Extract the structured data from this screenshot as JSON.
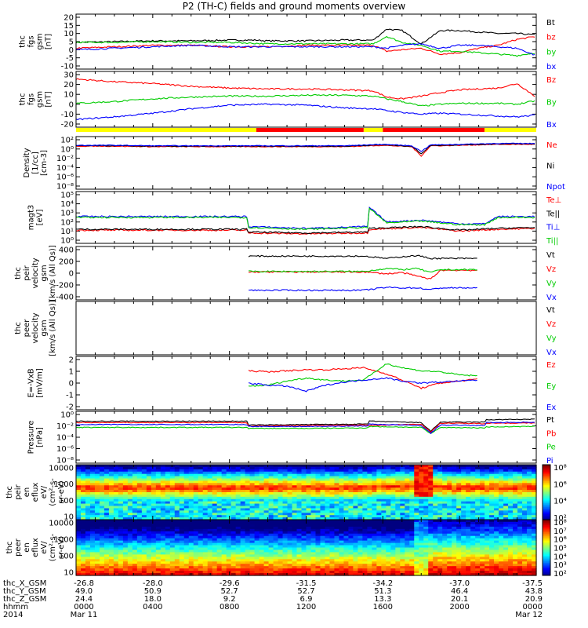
{
  "title": "P2 (TH-C) fields and ground moments overview",
  "chart_data": [
    {
      "type": "line",
      "ylabel_lines": [
        "thc",
        "fgs",
        "gsm",
        "[nT]"
      ],
      "yticks": [
        "20",
        "15",
        "10",
        "5",
        "0",
        "-5",
        "-10"
      ],
      "ylim": [
        -12,
        21
      ],
      "series": [
        {
          "name": "Bt",
          "color": "#000000",
          "x": [
            0,
            2,
            4,
            6,
            8,
            9.4,
            10,
            12,
            14,
            15.5,
            16.2,
            17,
            18,
            19,
            20,
            21,
            22,
            23,
            24
          ],
          "values": [
            4,
            4.5,
            5,
            5,
            5.5,
            5.5,
            5,
            5,
            5.5,
            5.5,
            13,
            12,
            3,
            12,
            12,
            11,
            10,
            10,
            9
          ]
        },
        {
          "name": "bz",
          "color": "#ff0000",
          "x": [
            0,
            2,
            4,
            6,
            8,
            10,
            12,
            14,
            15.5,
            16.2,
            17,
            18,
            19,
            20,
            21,
            22,
            23,
            24
          ],
          "values": [
            0,
            1,
            2,
            2,
            1,
            1,
            2,
            2,
            2,
            -2,
            -1,
            0,
            -4,
            -3,
            0,
            2,
            6,
            8
          ]
        },
        {
          "name": "by",
          "color": "#00cc00",
          "x": [
            0,
            2,
            4,
            6,
            8,
            10,
            12,
            14,
            15.5,
            16.2,
            17,
            18,
            19,
            20,
            21,
            22,
            23,
            24
          ],
          "values": [
            4,
            4,
            4.5,
            4,
            4,
            3,
            3,
            3,
            3,
            8,
            4,
            2,
            -2,
            -2,
            -3,
            -4,
            -5,
            -3
          ]
        },
        {
          "name": "bx",
          "color": "#0000ff",
          "x": [
            0,
            2,
            4,
            6,
            8,
            10,
            12,
            14,
            15.5,
            16.2,
            17,
            18,
            19,
            20,
            21,
            22,
            23,
            24
          ],
          "values": [
            -1,
            0,
            1,
            2,
            1,
            1,
            1,
            1,
            1,
            0,
            2,
            3,
            0,
            2,
            2,
            1,
            0,
            -5
          ]
        }
      ]
    },
    {
      "type": "line",
      "ylabel_lines": [
        "thc",
        "fgs",
        "gsm",
        "[nT]"
      ],
      "yticks": [
        "30",
        "20",
        "10",
        "0",
        "-10",
        "-20"
      ],
      "ylim": [
        -25,
        30
      ],
      "series": [
        {
          "name": "Bz",
          "color": "#ff0000",
          "x": [
            0,
            2,
            4,
            6,
            8,
            10,
            12,
            14,
            15.5,
            16.2,
            17,
            18,
            19,
            20,
            21,
            22,
            23,
            24
          ],
          "values": [
            25,
            22,
            20,
            17,
            15,
            14,
            14,
            13,
            12,
            5,
            3,
            6,
            10,
            13,
            14,
            15,
            20,
            5
          ]
        },
        {
          "name": "By",
          "color": "#00cc00",
          "x": [
            0,
            2,
            4,
            6,
            8,
            10,
            12,
            14,
            15.5,
            16.2,
            17,
            18,
            19,
            20,
            21,
            22,
            23,
            24
          ],
          "values": [
            -2,
            0,
            3,
            5,
            6,
            6,
            7,
            7,
            6,
            3,
            0,
            -5,
            -3,
            -2,
            -2,
            -2,
            -3,
            1
          ]
        },
        {
          "name": "Bx",
          "color": "#0000ff",
          "x": [
            0,
            2,
            4,
            6,
            8,
            10,
            12,
            14,
            15.5,
            16.2,
            17,
            18,
            19,
            20,
            21,
            22,
            23,
            24
          ],
          "values": [
            -20,
            -17,
            -13,
            -8,
            -4,
            -3,
            -4,
            -7,
            -8,
            -10,
            -12,
            -14,
            -13,
            -14,
            -15,
            -16,
            -17,
            -15
          ]
        }
      ]
    },
    {
      "type": "line",
      "log_y": true,
      "ylabel_lines": [
        "Density",
        "[1/cc]",
        "[cm-3]"
      ],
      "yticks": [
        "10²",
        "10⁰",
        "10⁻²",
        "10⁻⁴",
        "10⁻⁶",
        "10⁻⁸"
      ],
      "ylim_exp": [
        -8,
        2
      ],
      "series": [
        {
          "name": "Ne",
          "color": "#ff0000",
          "x": [
            0,
            2,
            4,
            6,
            8,
            10,
            12,
            14,
            16,
            17.5,
            18,
            18.5,
            19,
            20,
            22,
            24
          ],
          "values_exp": [
            0.6,
            0.6,
            0.5,
            0.5,
            0.5,
            0.5,
            0.5,
            0.5,
            0.8,
            0.5,
            -1.5,
            0.7,
            0.7,
            0.8,
            1,
            1
          ]
        },
        {
          "name": "Ni",
          "color": "#000000",
          "x": [
            0,
            2,
            4,
            6,
            8,
            10,
            12,
            14,
            16,
            17.5,
            18,
            18.5,
            19,
            20,
            22,
            24
          ],
          "values_exp": [
            0.7,
            0.7,
            0.6,
            0.6,
            0.6,
            0.6,
            0.6,
            0.6,
            0.9,
            0.6,
            -1,
            0.8,
            0.8,
            0.9,
            1.1,
            1.1
          ]
        },
        {
          "name": "Npot",
          "color": "#0000ff",
          "x": [
            0,
            2,
            4,
            6,
            8,
            10,
            12,
            14,
            16,
            17.5,
            18,
            18.5,
            19,
            20,
            22,
            24
          ],
          "values_exp": [
            0.8,
            0.8,
            0.7,
            0.7,
            0.7,
            0.7,
            0.7,
            0.7,
            1,
            0.7,
            -0.5,
            0.9,
            0.9,
            1,
            1.2,
            1.2
          ]
        }
      ]
    },
    {
      "type": "line",
      "log_y": true,
      "ylabel_lines": [
        "magt3",
        "[eV]"
      ],
      "yticks": [
        "10⁵",
        "10⁴",
        "10³",
        "10²",
        "10¹",
        "10⁰"
      ],
      "ylim_exp": [
        0,
        5
      ],
      "series": [
        {
          "name": "Te⊥",
          "color": "#ff0000",
          "x": [
            0,
            8.9,
            9,
            12,
            15.2,
            15.3,
            18,
            20,
            22,
            24
          ],
          "values_exp": [
            1.1,
            1.1,
            0.8,
            0.7,
            0.8,
            1.2,
            1.4,
            1.0,
            1.2,
            1.3
          ]
        },
        {
          "name": "Te||",
          "color": "#000000",
          "x": [
            0,
            8.9,
            9,
            12,
            15.2,
            15.3,
            18,
            20,
            22,
            24
          ],
          "values_exp": [
            1.2,
            1.2,
            0.9,
            0.8,
            0.9,
            1.3,
            1.5,
            1.1,
            1.3,
            1.4
          ]
        },
        {
          "name": "Ti⊥",
          "color": "#0000ff",
          "x": [
            0,
            8.9,
            9,
            12,
            15.2,
            15.3,
            16.2,
            18,
            20,
            21.3,
            22,
            24
          ],
          "values_exp": [
            2.6,
            2.6,
            1.5,
            1.3,
            1.5,
            3.6,
            2,
            2.2,
            1.8,
            1.8,
            2.6,
            2.6
          ]
        },
        {
          "name": "Ti||",
          "color": "#00cc00",
          "x": [
            0,
            8.9,
            9,
            12,
            15.2,
            15.3,
            16.2,
            18,
            20,
            21.3,
            22,
            24
          ],
          "values_exp": [
            2.5,
            2.5,
            1.4,
            1.2,
            1.4,
            3.5,
            1.9,
            2.1,
            1.7,
            1.7,
            2.5,
            2.5
          ]
        }
      ]
    },
    {
      "type": "line",
      "ylabel_lines": [
        "thc",
        "peir",
        "velocity",
        "gsm",
        "[km/s (All Qs)]"
      ],
      "yticks": [
        "400",
        "200",
        "0",
        "-200",
        "-400"
      ],
      "ylim": [
        -400,
        400
      ],
      "series": [
        {
          "name": "Vt",
          "color": "#000000",
          "x": [
            9,
            12,
            15,
            16.2,
            17,
            17.8,
            18.5,
            19,
            20,
            21
          ],
          "values": [
            290,
            290,
            290,
            250,
            280,
            300,
            250,
            250,
            250,
            250
          ]
        },
        {
          "name": "Vz",
          "color": "#ff0000",
          "x": [
            9,
            12,
            15,
            16.2,
            17,
            17.8,
            18.5,
            19,
            20,
            21
          ],
          "values": [
            20,
            20,
            20,
            -10,
            10,
            -50,
            -100,
            50,
            50,
            50
          ]
        },
        {
          "name": "Vy",
          "color": "#00cc00",
          "x": [
            9,
            12,
            15,
            16.2,
            17,
            17.8,
            18.5,
            19,
            20,
            21
          ],
          "values": [
            30,
            30,
            30,
            80,
            60,
            80,
            10,
            60,
            60,
            60
          ]
        },
        {
          "name": "Vx",
          "color": "#0000ff",
          "x": [
            9,
            12,
            15,
            16.2,
            17,
            17.8,
            18.5,
            19,
            20,
            21
          ],
          "values": [
            -290,
            -290,
            -290,
            -240,
            -250,
            -250,
            -280,
            -250,
            -250,
            -250
          ]
        }
      ]
    },
    {
      "type": "line",
      "ylabel_lines": [
        "thc",
        "peer",
        "velocity",
        "gsm",
        "[km/s (All Qs)]"
      ],
      "yticks": [],
      "series": [
        {
          "name": "Vt",
          "color": "#000000",
          "x": [],
          "values": []
        },
        {
          "name": "Vz",
          "color": "#ff0000",
          "x": [],
          "values": []
        },
        {
          "name": "Vy",
          "color": "#00cc00",
          "x": [],
          "values": []
        },
        {
          "name": "Vx",
          "color": "#0000ff",
          "x": [],
          "values": []
        }
      ]
    },
    {
      "type": "line",
      "ylabel_lines": [
        "E=-VxB",
        "[mV/m]"
      ],
      "yticks": [
        "2",
        "1",
        "0",
        "-1",
        "-2"
      ],
      "ylim": [
        -2.3,
        2.3
      ],
      "series": [
        {
          "name": "Ez",
          "color": "#ff0000",
          "x": [
            9,
            10,
            11,
            12,
            13,
            14,
            15,
            16.2,
            17,
            18,
            19,
            20,
            21
          ],
          "values": [
            1.2,
            1.1,
            1.2,
            1.3,
            1.3,
            1.4,
            1.5,
            0.9,
            0.3,
            -0.5,
            0,
            0.2,
            0.4
          ]
        },
        {
          "name": "Ey",
          "color": "#00cc00",
          "x": [
            9,
            10,
            11,
            12,
            13,
            14,
            15,
            16.2,
            17,
            18,
            19,
            20,
            21
          ],
          "values": [
            -0.3,
            -0.2,
            0.2,
            0.5,
            0.3,
            0.2,
            0.3,
            1.9,
            1.5,
            1.2,
            1.1,
            0.8,
            0.7
          ]
        },
        {
          "name": "Ex",
          "color": "#0000ff",
          "x": [
            9,
            10,
            11,
            12,
            13,
            14,
            15,
            16.2,
            17,
            18,
            19,
            20,
            21
          ],
          "values": [
            0,
            -0.2,
            -0.3,
            -0.8,
            -0.2,
            0.1,
            0.3,
            0.5,
            0.2,
            0,
            0.1,
            0.2,
            0.3
          ]
        }
      ]
    },
    {
      "type": "line",
      "log_y": true,
      "ylabel_lines": [
        "Pressure",
        "[nPa]"
      ],
      "yticks": [
        "10⁰",
        "10⁻²",
        "10⁻⁴",
        "10⁻⁶",
        "10⁻⁸"
      ],
      "ylim_exp": [
        -9,
        0.5
      ],
      "series": [
        {
          "name": "Pt",
          "color": "#000000",
          "x": [
            0,
            8.9,
            9,
            12,
            15.2,
            15.3,
            18,
            18.5,
            19,
            21.3,
            21.4,
            24
          ],
          "values_exp": [
            -0.9,
            -0.9,
            -1.7,
            -1.6,
            -1.5,
            -0.9,
            -1.2,
            -3,
            -1.1,
            -1.1,
            -0.6,
            -0.5
          ]
        },
        {
          "name": "Pb",
          "color": "#ff0000",
          "x": [
            0,
            8.9,
            9,
            12,
            15.2,
            15.3,
            18,
            18.5,
            19,
            21.3,
            21.4,
            24
          ],
          "values_exp": [
            -1.2,
            -1.2,
            -1.9,
            -1.8,
            -1.7,
            -1.8,
            -1.5,
            -3.2,
            -1.3,
            -1.4,
            -1.3,
            -1.3
          ]
        },
        {
          "name": "Pe",
          "color": "#00cc00",
          "x": [
            0,
            8.9,
            9,
            12,
            15.2,
            15.3,
            18,
            18.5,
            19,
            21.3,
            21.4,
            24
          ],
          "values_exp": [
            -2.2,
            -2.2,
            -2.4,
            -2.4,
            -2.3,
            -2.0,
            -2.2,
            -3.5,
            -2.2,
            -2.3,
            -2.1,
            -2.0
          ]
        },
        {
          "name": "Pi",
          "color": "#0000ff",
          "x": [
            0,
            8.9,
            9,
            12,
            15.2,
            15.3,
            18,
            18.5,
            19,
            21.3,
            21.4,
            24
          ],
          "values_exp": [
            -1.6,
            -1.6,
            -2.0,
            -2.0,
            -1.9,
            -1.5,
            -1.8,
            -3.4,
            -1.7,
            -1.8,
            -1.2,
            -1.1
          ]
        }
      ]
    },
    {
      "type": "heatmap",
      "ylabel_lines": [
        "thc",
        "peir",
        "en",
        "eflux",
        "eV/",
        "(cm²-s-",
        "sr-eV)"
      ],
      "yticks": [
        "10000",
        "1000",
        "100",
        "10"
      ],
      "colorbar_ticks": [
        "10⁸",
        "10⁶",
        "10⁴",
        "10²"
      ]
    },
    {
      "type": "heatmap",
      "ylabel_lines": [
        "thc",
        "peer",
        "en",
        "eflux",
        "eV/",
        "(cm²-s-",
        "sr-eV)"
      ],
      "yticks": [
        "10000",
        "1000",
        "100",
        "10"
      ],
      "colorbar_ticks": [
        "10⁸",
        "10⁷",
        "10⁶",
        "10⁵",
        "10⁴",
        "10³",
        "10²"
      ]
    }
  ],
  "xaxis": {
    "row_labels": [
      "thc_X_GSM",
      "thc_Y_GSM",
      "thc_Z_GSM",
      "hhmm",
      "2014"
    ],
    "ticks": [
      {
        "x": "-26.8",
        "y": "49.0",
        "z": "24.4",
        "t": "0000",
        "d": "Mar 11"
      },
      {
        "x": "-28.0",
        "y": "50.9",
        "z": "18.0",
        "t": "0400",
        "d": ""
      },
      {
        "x": "-29.6",
        "y": "52.7",
        "z": "9.2",
        "t": "0800",
        "d": ""
      },
      {
        "x": "-31.5",
        "y": "52.7",
        "z": "6.9",
        "t": "1200",
        "d": ""
      },
      {
        "x": "-34.2",
        "y": "51.3",
        "z": "13.3",
        "t": "1600",
        "d": ""
      },
      {
        "x": "-37.0",
        "y": "46.4",
        "z": "20.1",
        "t": "2000",
        "d": ""
      },
      {
        "x": "-37.5",
        "y": "43.8",
        "z": "20.9",
        "t": "0000",
        "d": "Mar 12"
      }
    ]
  }
}
